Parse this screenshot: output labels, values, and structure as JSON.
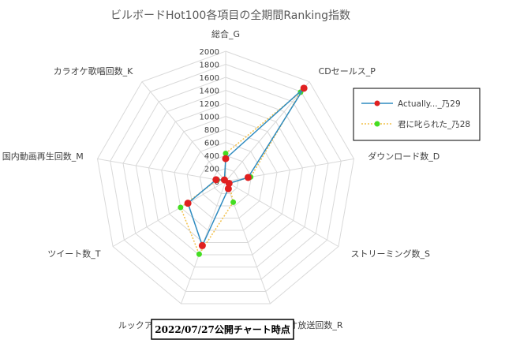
{
  "chart_data": {
    "type": "radar",
    "title": "ビルボードHot100各項目の全期間Ranking指数",
    "axes": [
      "総合_G",
      "CDセールス_P",
      "ダウンロード数_D",
      "ストリーミング数_S",
      "ラジオ放送回数_R",
      "ルックアップ_L",
      "ツイート数_T",
      "国内動画再生回数_M",
      "カラオケ歌唱回数_K"
    ],
    "rmin": 0,
    "rmax": 2000,
    "ticks": [
      0,
      200,
      400,
      600,
      800,
      1000,
      1200,
      1400,
      1600,
      1800,
      2000
    ],
    "tick_labels": [
      "0",
      "200",
      "400",
      "600",
      "800",
      "1000",
      "1200",
      "1400",
      "1600",
      "1800",
      "2000"
    ],
    "grid": true,
    "legend_position": "right",
    "series": [
      {
        "name": "Actually..._乃29",
        "values": [
          350,
          1870,
          350,
          60,
          120,
          1050,
          670,
          150,
          30
        ],
        "color": "#2E8BC0",
        "marker_color": "#E02020",
        "line_style": "solid"
      },
      {
        "name": "君に叱られた_乃28",
        "values": [
          430,
          1790,
          390,
          60,
          340,
          1190,
          800,
          130,
          20
        ],
        "color": "#F2C04A",
        "marker_color": "#44DD22",
        "line_style": "dotted"
      }
    ],
    "caption": "2022/07/27公開チャート時点"
  }
}
